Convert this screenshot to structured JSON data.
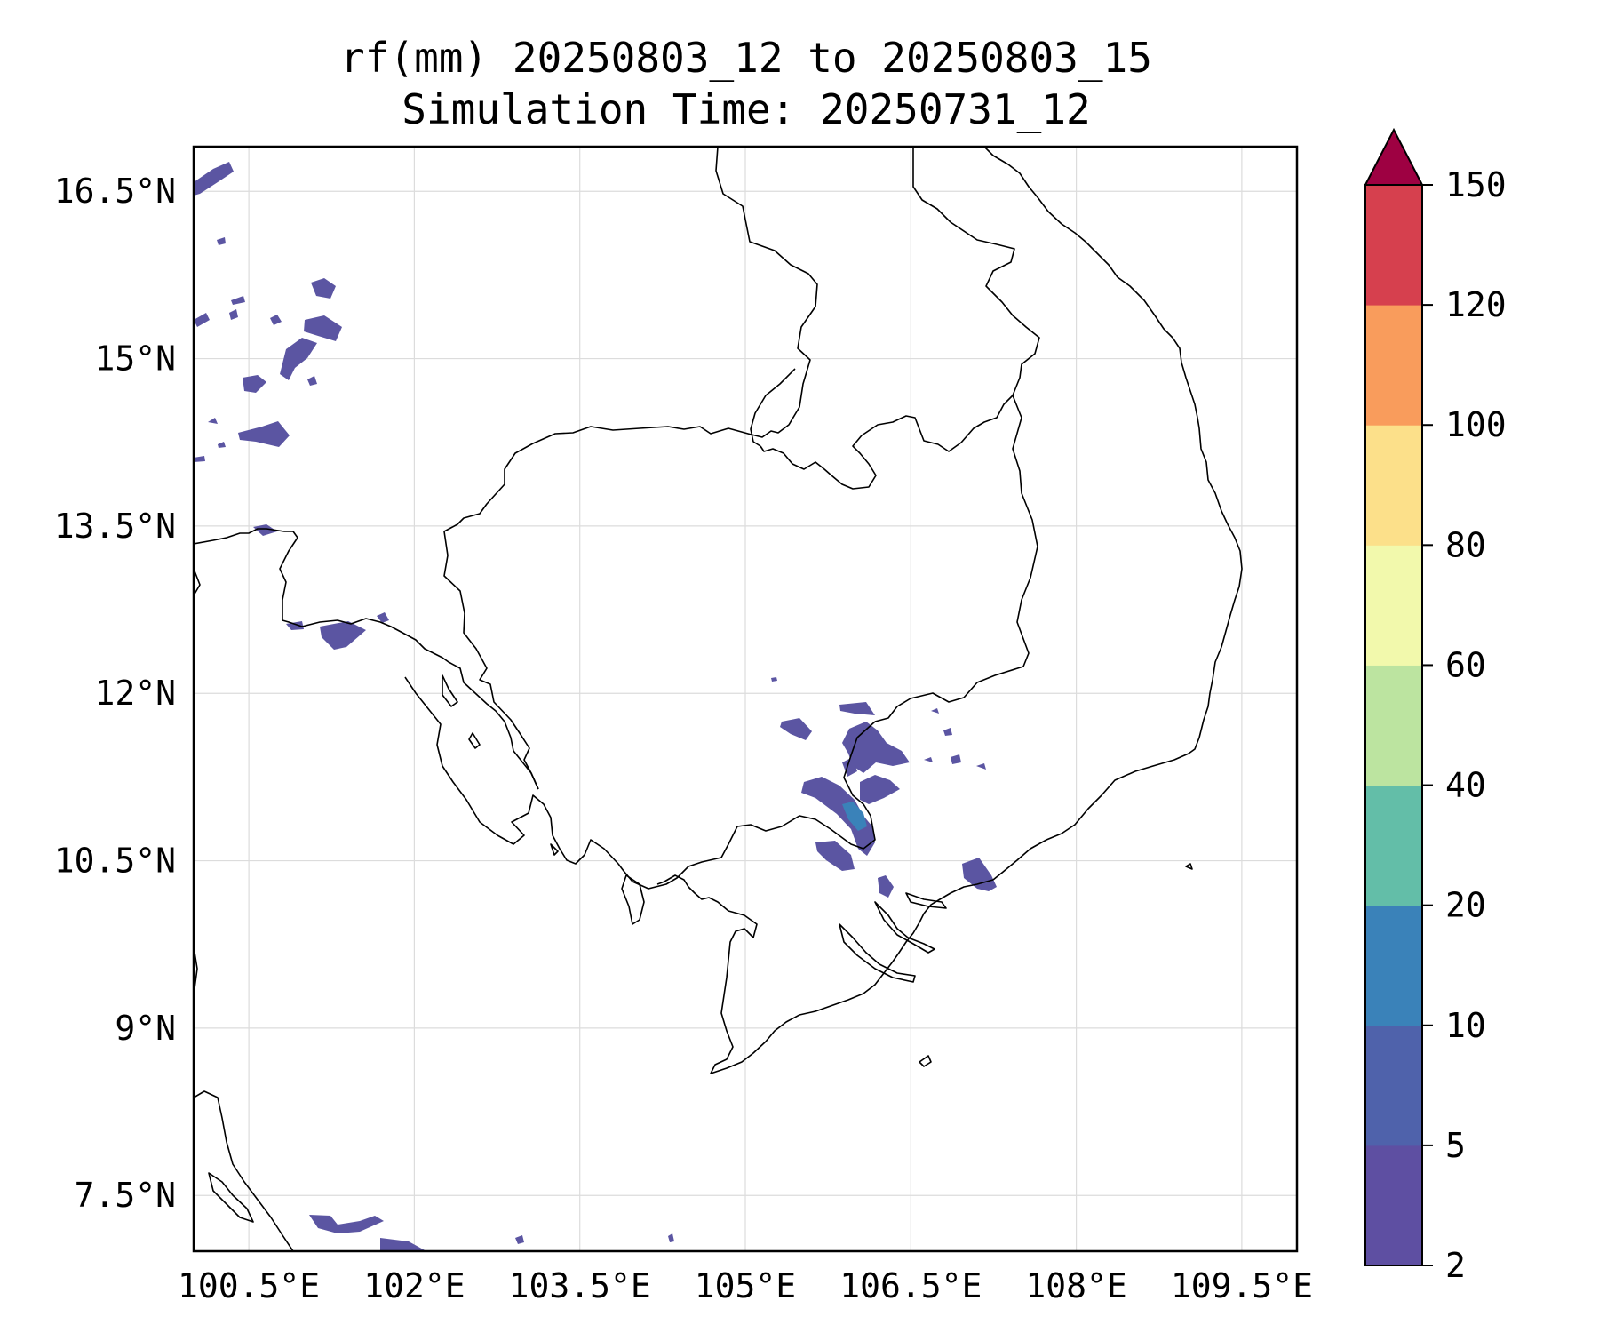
{
  "title": {
    "line1": "rf(mm) 20250803_12 to 20250803_15",
    "line2": "Simulation Time: 20250731_12"
  },
  "map": {
    "lon_range": [
      100.0,
      110.0
    ],
    "lat_range": [
      7.0,
      16.9
    ],
    "lon_ticks": [
      {
        "value": 100.5,
        "label": "100.5°E"
      },
      {
        "value": 102.0,
        "label": "102°E"
      },
      {
        "value": 103.5,
        "label": "103.5°E"
      },
      {
        "value": 105.0,
        "label": "105°E"
      },
      {
        "value": 106.5,
        "label": "106.5°E"
      },
      {
        "value": 108.0,
        "label": "108°E"
      },
      {
        "value": 109.5,
        "label": "109.5°E"
      }
    ],
    "lat_ticks": [
      {
        "value": 16.5,
        "label": "16.5°N"
      },
      {
        "value": 15.0,
        "label": "15°N"
      },
      {
        "value": 13.5,
        "label": "13.5°N"
      },
      {
        "value": 12.0,
        "label": "12°N"
      },
      {
        "value": 10.5,
        "label": "10.5°N"
      },
      {
        "value": 9.0,
        "label": "9°N"
      },
      {
        "value": 7.5,
        "label": "7.5°N"
      }
    ],
    "grid": true
  },
  "colorbar": {
    "levels": [
      "2",
      "5",
      "10",
      "20",
      "40",
      "60",
      "80",
      "100",
      "120",
      "150"
    ],
    "colors": [
      "#5e4fa2",
      "#4f62ab",
      "#3a82b9",
      "#63bea8",
      "#bce4a0",
      "#f2f9ac",
      "#fce08a",
      "#f99c5c",
      "#d6404e",
      "#9e0142"
    ],
    "extend": "max"
  }
}
